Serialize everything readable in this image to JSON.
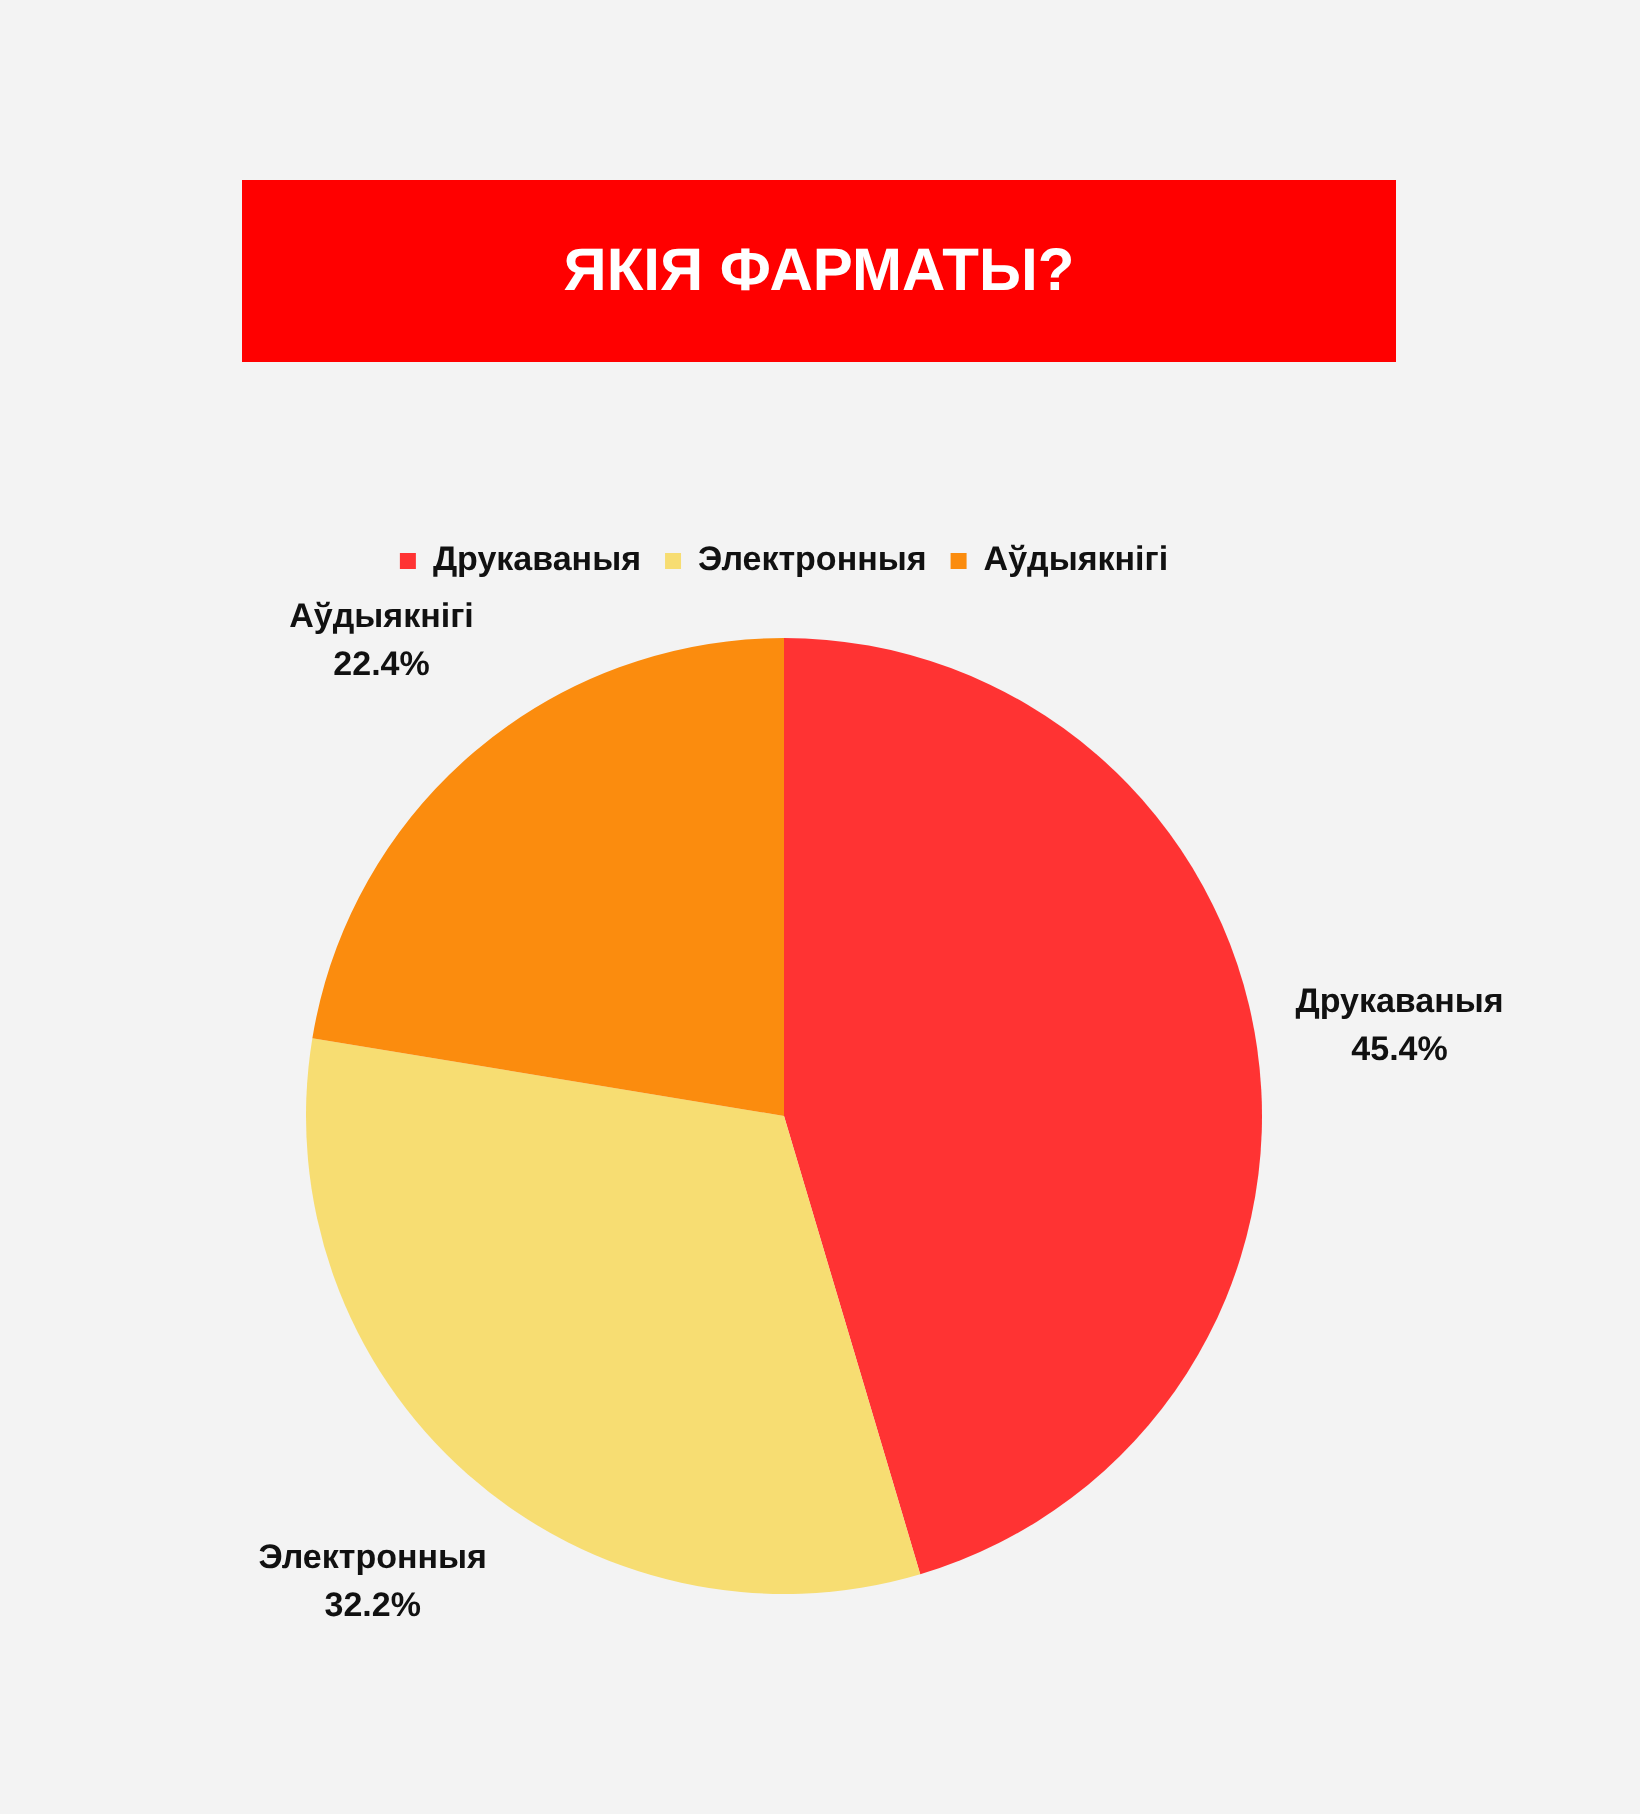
{
  "chart_data": {
    "type": "pie",
    "title": "ЯКІЯ ФАРМАТЫ?",
    "categories": [
      "Друкаваныя",
      "Электронныя",
      "Аўдыякнігі"
    ],
    "values": [
      45.4,
      32.2,
      22.4
    ],
    "colors": [
      "#ff3333",
      "#f7dd72",
      "#fb8c0e"
    ],
    "value_labels": [
      "45.4%",
      "32.2%",
      "22.4%"
    ],
    "legend": "top"
  }
}
